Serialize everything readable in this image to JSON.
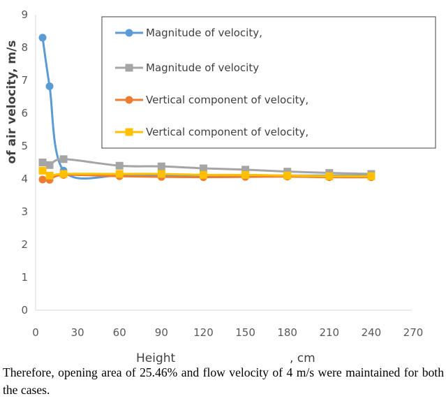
{
  "chart_data": {
    "type": "line",
    "xlabel_parts": [
      "Height",
      "",
      ", cm"
    ],
    "ylabel": "of air velocity, m/s",
    "xlim": [
      0,
      270
    ],
    "ylim": [
      0,
      9
    ],
    "x_ticks": [
      "0",
      "30",
      "60",
      "90",
      "120",
      "150",
      "180",
      "210",
      "240",
      "270"
    ],
    "y_ticks": [
      "0",
      "1",
      "2",
      "3",
      "4",
      "5",
      "6",
      "7",
      "8",
      "9"
    ],
    "grid": false,
    "legend_position": "top-right",
    "series": [
      {
        "name": "Magnitude of velocity,",
        "color": "#5B9BD5",
        "marker": "circle",
        "x": [
          5,
          10,
          20,
          60,
          90,
          120,
          150,
          180,
          210,
          240
        ],
        "y": [
          8.3,
          6.82,
          4.25,
          4.1,
          4.1,
          4.1,
          4.1,
          4.1,
          4.1,
          4.1
        ]
      },
      {
        "name": "Magnitude of velocity",
        "color": "#A5A5A5",
        "marker": "square",
        "x": [
          5,
          10,
          20,
          60,
          90,
          120,
          150,
          180,
          210,
          240
        ],
        "y": [
          4.5,
          4.42,
          4.6,
          4.4,
          4.38,
          4.32,
          4.28,
          4.22,
          4.18,
          4.15
        ]
      },
      {
        "name": "Vertical component of velocity,",
        "color": "#ED7D31",
        "marker": "circle",
        "x": [
          5,
          10,
          20,
          60,
          90,
          120,
          150,
          180,
          210,
          240
        ],
        "y": [
          3.98,
          3.97,
          4.12,
          4.08,
          4.06,
          4.05,
          4.06,
          4.07,
          4.05,
          4.05
        ]
      },
      {
        "name": "Vertical component of velocity,",
        "color": "#FFC000",
        "marker": "square",
        "x": [
          5,
          10,
          20,
          60,
          90,
          120,
          150,
          180,
          210,
          240
        ],
        "y": [
          4.25,
          4.1,
          4.15,
          4.15,
          4.15,
          4.12,
          4.12,
          4.1,
          4.08,
          4.08
        ]
      }
    ]
  },
  "caption": "Therefore, opening area of 25.46% and flow velocity of 4 m/s were maintained for both the cases."
}
